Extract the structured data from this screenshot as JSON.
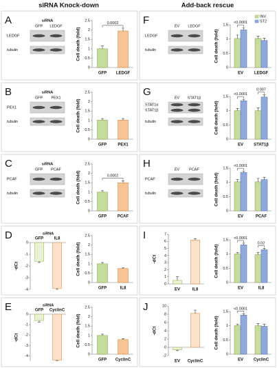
{
  "headers": {
    "left": "siRNA Knock-down",
    "right": "Add-back rescue"
  },
  "panels": [
    {
      "letter": "A",
      "blot": {
        "header": "siRNA",
        "lanes": [
          "GFP",
          "LEDGF"
        ],
        "rows": [
          [
            "LEDGF"
          ],
          [
            "tubulin"
          ]
        ]
      },
      "chart_data": [
        {
          "type": "bar",
          "categories": [
            "GFP",
            "LEDGF"
          ],
          "values": [
            1.0,
            1.95
          ],
          "errors": [
            0.15,
            0.15
          ],
          "colors": [
            "#c5dc9c",
            "#f6c593"
          ],
          "ylim": [
            0,
            2.5
          ],
          "yticks": [
            0,
            0.5,
            1,
            1.5,
            2,
            2.5
          ],
          "ylabel": "Cell death (fold)",
          "annotations": [
            "0.0002"
          ]
        }
      ]
    },
    {
      "letter": "B",
      "blot": {
        "header": "siRNA",
        "lanes": [
          "GFP",
          "PEX1"
        ],
        "rows": [
          [
            "PEX1"
          ],
          [
            "tubulin"
          ]
        ]
      },
      "chart_data": [
        {
          "type": "bar",
          "categories": [
            "GFP",
            "PEX1"
          ],
          "values": [
            1.02,
            1.02
          ],
          "errors": [
            0.08,
            0.08
          ],
          "colors": [
            "#c5dc9c",
            "#f6c593"
          ],
          "ylim": [
            0,
            2.5
          ],
          "yticks": [
            0,
            0.5,
            1,
            1.5,
            2,
            2.5
          ],
          "ylabel": "Cell death (fold)"
        }
      ]
    },
    {
      "letter": "C",
      "blot": {
        "header": "siRNA",
        "lanes": [
          "GFP",
          "PCAF"
        ],
        "rows": [
          [
            "PCAF"
          ],
          [
            "tubulin"
          ]
        ]
      },
      "chart_data": [
        {
          "type": "bar",
          "categories": [
            "GFP",
            "PCAF"
          ],
          "values": [
            1.0,
            1.5
          ],
          "errors": [
            0.08,
            0.1
          ],
          "colors": [
            "#c5dc9c",
            "#f6c593"
          ],
          "ylim": [
            0,
            2.5
          ],
          "yticks": [
            0,
            0.5,
            1,
            1.5,
            2,
            2.5
          ],
          "ylabel": "Cell death (fold)",
          "annotations": [
            "0.0002"
          ]
        }
      ]
    },
    {
      "letter": "D",
      "chart_data": [
        {
          "type": "bar",
          "title": "siRNA",
          "xaxis": "top",
          "categories": [
            "GFP",
            "IL8"
          ],
          "values": [
            -1.6,
            -3.9
          ],
          "errors": [
            0.1,
            0.1
          ],
          "colors": [
            "#e8f2d2",
            "#fde2cb"
          ],
          "ylim": [
            -4,
            0
          ],
          "yticks": [
            0,
            -1,
            -2,
            -3,
            -4
          ],
          "ylabel": "-dCt"
        },
        {
          "type": "bar",
          "categories": [
            "GFP",
            "IL8"
          ],
          "values": [
            1.0,
            0.75
          ],
          "errors": [
            0.07,
            0.05
          ],
          "colors": [
            "#c5dc9c",
            "#f6c593"
          ],
          "ylim": [
            0,
            2.5
          ],
          "yticks": [
            0,
            0.5,
            1,
            1.5,
            2,
            2.5
          ],
          "ylabel": "Cell death (fold)"
        }
      ]
    },
    {
      "letter": "E",
      "chart_data": [
        {
          "type": "bar",
          "title": "siRNA",
          "xaxis": "top",
          "categories": [
            "GFP",
            "CyclinC"
          ],
          "values": [
            -0.6,
            -4.4
          ],
          "errors": [
            0.15,
            0.05
          ],
          "colors": [
            "#e8f2d2",
            "#fde2cb"
          ],
          "ylim": [
            -4.5,
            0
          ],
          "yticks": [
            0,
            -1,
            -2,
            -3,
            -4
          ],
          "ylabel": "-dCt"
        },
        {
          "type": "bar",
          "categories": [
            "GFP",
            "CyclinC"
          ],
          "values": [
            1.0,
            0.78
          ],
          "errors": [
            0.07,
            0.05
          ],
          "colors": [
            "#c5dc9c",
            "#f6c593"
          ],
          "ylim": [
            0,
            2.5
          ],
          "yticks": [
            0,
            0.5,
            1,
            1.5,
            2,
            2.5
          ],
          "ylabel": "Cell death (fold)"
        }
      ]
    },
    {
      "letter": "F",
      "blot": {
        "lanes": [
          "EV",
          "LEDGF"
        ],
        "rows": [
          [
            "LEDGF"
          ],
          [
            "tubulin"
          ]
        ]
      },
      "chart_data": [
        {
          "type": "bar",
          "categories": [
            "EV",
            "LEDGF"
          ],
          "series": [
            {
              "name": "INV",
              "color": "#c5dc9c",
              "values": [
                1.02,
                1.02
              ],
              "errors": [
                0.12,
                0.08
              ]
            },
            {
              "name": "ST2",
              "color": "#8eaadb",
              "values": [
                1.32,
                0.95
              ],
              "errors": [
                0.08,
                0.08
              ]
            }
          ],
          "ylim": [
            0,
            1.5
          ],
          "yticks": [
            0,
            0.5,
            1,
            1.5
          ],
          "ylabel": "Cell death (fold)",
          "legend": "top-right",
          "annotations": [
            "<0.0001"
          ]
        }
      ]
    },
    {
      "letter": "G",
      "blot": {
        "lanes": [
          "EV",
          "STAT1β"
        ],
        "rows": [
          [
            "STAT1α",
            "STAT1β"
          ],
          [
            "tubulin"
          ]
        ]
      },
      "chart_data": [
        {
          "type": "bar",
          "categories": [
            "EV",
            "STAT1β"
          ],
          "series": [
            {
              "name": "INV",
              "color": "#c5dc9c",
              "values": [
                1.0,
                1.0
              ],
              "errors": [
                0.08,
                0.1
              ]
            },
            {
              "name": "ST2",
              "color": "#8eaadb",
              "values": [
                1.35,
                1.48
              ],
              "errors": [
                0.05,
                0.08
              ]
            }
          ],
          "ylim": [
            0,
            1.5
          ],
          "yticks": [
            0,
            0.5,
            1,
            1.5
          ],
          "ylabel": "Cell death (fold)",
          "annotations": [
            "<0.0001",
            "0.007"
          ]
        }
      ]
    },
    {
      "letter": "H",
      "blot": {
        "lanes": [
          "EV",
          "PCAF"
        ],
        "rows": [
          [
            "PCAF"
          ],
          [
            "tubulin"
          ]
        ]
      },
      "chart_data": [
        {
          "type": "bar",
          "categories": [
            "EV",
            "PCAF"
          ],
          "series": [
            {
              "name": "INV",
              "color": "#c5dc9c",
              "values": [
                1.02,
                1.02
              ],
              "errors": [
                0.08,
                0.12
              ]
            },
            {
              "name": "ST2",
              "color": "#8eaadb",
              "values": [
                1.35,
                1.1
              ],
              "errors": [
                0.05,
                0.08
              ]
            }
          ],
          "ylim": [
            0,
            1.5
          ],
          "yticks": [
            0,
            0.5,
            1,
            1.5
          ],
          "ylabel": "Cell death (fold)",
          "annotations": [
            "<0.0001"
          ]
        }
      ]
    },
    {
      "letter": "I",
      "chart_data": [
        {
          "type": "bar",
          "categories": [
            "EV",
            "IL8"
          ],
          "values": [
            0.5,
            6.2
          ],
          "errors": [
            0.5,
            0.2
          ],
          "colors": [
            "#e8f2d2",
            "#fde2cb"
          ],
          "ylim": [
            0,
            7
          ],
          "yticks": [
            0,
            1,
            2,
            3,
            4,
            5,
            6,
            7
          ],
          "ylabel": "-dCt"
        },
        {
          "type": "bar",
          "categories": [
            "EV",
            "IL8"
          ],
          "series": [
            {
              "name": "INV",
              "color": "#c5dc9c",
              "values": [
                1.0,
                0.98
              ],
              "errors": [
                0.05,
                0.08
              ]
            },
            {
              "name": "ST2",
              "color": "#8eaadb",
              "values": [
                1.32,
                1.15
              ],
              "errors": [
                0.06,
                0.05
              ]
            }
          ],
          "ylim": [
            0,
            1.5
          ],
          "yticks": [
            0,
            0.5,
            1,
            1.5
          ],
          "ylabel": "Cell death (fold)",
          "annotations": [
            "<0.0001",
            "0.02"
          ]
        }
      ]
    },
    {
      "letter": "J",
      "chart_data": [
        {
          "type": "bar",
          "categories": [
            "EV",
            "CyclinC"
          ],
          "values": [
            -0.6,
            8.2
          ],
          "errors": [
            0.2,
            0.8
          ],
          "colors": [
            "#e8f2d2",
            "#fde2cb"
          ],
          "ylim": [
            -2,
            10
          ],
          "yticks": [
            -2,
            0,
            2,
            4,
            6,
            8,
            10
          ],
          "ylabel": "-dCt"
        },
        {
          "type": "bar",
          "categories": [
            "EV",
            "CyclinC"
          ],
          "series": [
            {
              "name": "INV",
              "color": "#c5dc9c",
              "values": [
                1.0,
                1.0
              ],
              "errors": [
                0.05,
                0.08
              ]
            },
            {
              "name": "ST2",
              "color": "#8eaadb",
              "values": [
                1.37,
                0.98
              ],
              "errors": [
                0.05,
                0.08
              ]
            }
          ],
          "ylim": [
            0,
            1.5
          ],
          "yticks": [
            0,
            0.5,
            1,
            1.5
          ],
          "ylabel": "Cell death (fold)",
          "annotations": [
            "<0.0001"
          ]
        }
      ]
    }
  ]
}
